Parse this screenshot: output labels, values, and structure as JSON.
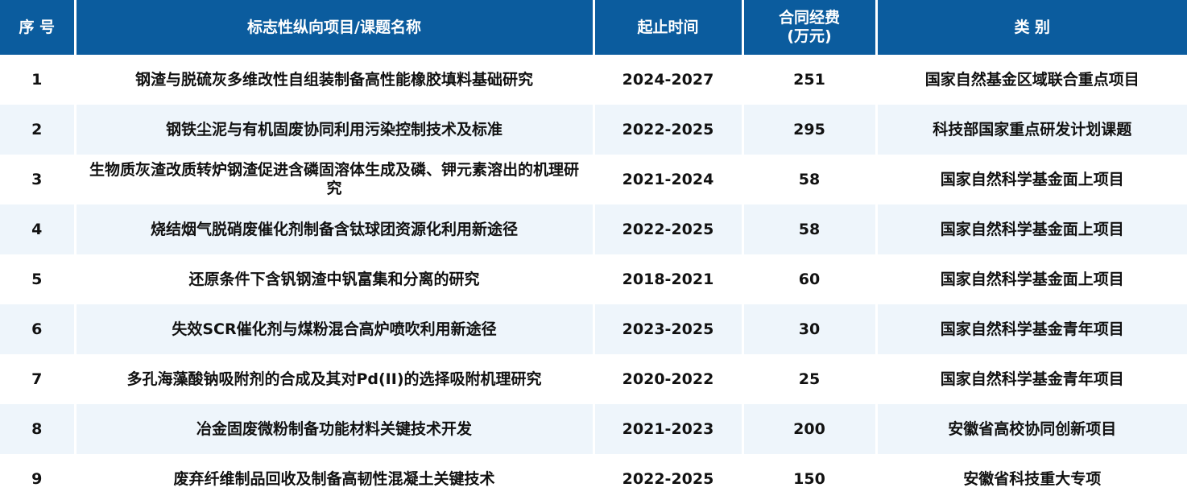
{
  "header": {
    "index": "序 号",
    "name": "标志性纵向项目/课题名称",
    "period": "起止时间",
    "funding_line1": "合同经费",
    "funding_line2": "(万元)",
    "category": "类 别"
  },
  "colors": {
    "header_bg": "#0b5c9e",
    "alt_row_bg": "#eef5fb"
  },
  "rows": [
    {
      "index": "1",
      "name": "钢渣与脱硫灰多维改性自组装制备高性能橡胶填料基础研究",
      "period": "2024-2027",
      "funding": "251",
      "category": "国家自然基金区域联合重点项目"
    },
    {
      "index": "2",
      "name": "钢铁尘泥与有机固废协同利用污染控制技术及标准",
      "period": "2022-2025",
      "funding": "295",
      "category": "科技部国家重点研发计划课题"
    },
    {
      "index": "3",
      "name": "生物质灰渣改质转炉钢渣促进含磷固溶体生成及磷、钾元素溶出的机理研究",
      "period": "2021-2024",
      "funding": "58",
      "category": "国家自然科学基金面上项目"
    },
    {
      "index": "4",
      "name": "烧结烟气脱硝废催化剂制备含钛球团资源化利用新途径",
      "period": "2022-2025",
      "funding": "58",
      "category": "国家自然科学基金面上项目"
    },
    {
      "index": "5",
      "name": "还原条件下含钒钢渣中钒富集和分离的研究",
      "period": "2018-2021",
      "funding": "60",
      "category": "国家自然科学基金面上项目"
    },
    {
      "index": "6",
      "name": "失效SCR催化剂与煤粉混合高炉喷吹利用新途径",
      "period": "2023-2025",
      "funding": "30",
      "category": "国家自然科学基金青年项目"
    },
    {
      "index": "7",
      "name": "多孔海藻酸钠吸附剂的合成及其对Pd(II)的选择吸附机理研究",
      "period": "2020-2022",
      "funding": "25",
      "category": "国家自然科学基金青年项目"
    },
    {
      "index": "8",
      "name": "冶金固废微粉制备功能材料关键技术开发",
      "period": "2021-2023",
      "funding": "200",
      "category": "安徽省高校协同创新项目"
    },
    {
      "index": "9",
      "name": "废弃纤维制品回收及制备高韧性混凝土关键技术",
      "period": "2022-2025",
      "funding": "150",
      "category": "安徽省科技重大专项"
    }
  ]
}
